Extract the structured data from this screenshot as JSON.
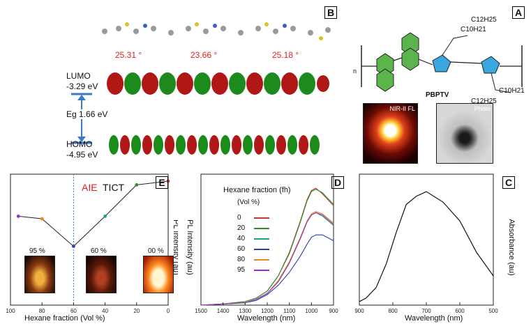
{
  "panels": {
    "A": {
      "label": "A",
      "polymer_name": "PBPTV",
      "subscript_n": "n",
      "side_chain_top_1": "C12H25",
      "side_chain_top_2": "C10H21",
      "side_chain_bottom_1": "C10H21",
      "side_chain_bottom_2": "C12H25",
      "photo_label": "Photo",
      "nir_label": "NIR-II FL"
    },
    "B": {
      "label": "B",
      "angles": [
        "25.31 °",
        "23.66 °",
        "25.18 °"
      ],
      "lumo_label": "LUMO",
      "lumo_value": "-3.29 eV",
      "gap_label": "Eg 1.66 eV",
      "homo_label": "HOMO",
      "homo_value": "-4.95 eV"
    },
    "C": {
      "label": "C",
      "ylabel": "Absorbance (au)",
      "xlabel": "Wavelength (nm)",
      "xticks": [
        "900",
        "800",
        "700",
        "600",
        "500"
      ]
    },
    "D": {
      "label": "D",
      "ylabel": "PL Intensity (au)",
      "xlabel": "Wavelength (nm)",
      "xticks": [
        "900",
        "1000",
        "1100",
        "1200",
        "1300",
        "1400",
        "1500"
      ],
      "legend_title_1": "Hexane fraction (fh)",
      "legend_title_2": "(Vol %)",
      "legend": [
        "0",
        "20",
        "40",
        "60",
        "80",
        "95"
      ]
    },
    "E": {
      "label": "E",
      "ylabel": "PL Intensity (au)",
      "xlabel": "Hexane fraction (Vol %)",
      "xticks": [
        "0",
        "20",
        "40",
        "60",
        "80",
        "100"
      ],
      "region_left": "AIE",
      "region_right": "TICT",
      "vial_labels": [
        "95 %",
        "60 %",
        "00 %"
      ]
    }
  },
  "colors": {
    "series": [
      "#c0392b",
      "#2e8b2e",
      "#1aa37a",
      "#2b3fa8",
      "#e08a1e",
      "#9b30c8"
    ],
    "aie": "#e02020"
  },
  "chart_data": [
    {
      "type": "line",
      "title": "",
      "xlabel": "Wavelength (nm)",
      "ylabel": "Absorbance (au)",
      "xlim": [
        500,
        900
      ],
      "series": [
        {
          "name": "",
          "x": [
            500,
            550,
            600,
            650,
            700,
            730,
            760,
            790,
            820,
            850,
            880,
            900
          ],
          "y": [
            0.25,
            0.45,
            0.72,
            0.88,
            0.97,
            0.93,
            0.86,
            0.62,
            0.35,
            0.15,
            0.06,
            0.03
          ]
        }
      ]
    },
    {
      "type": "line",
      "title": "",
      "xlabel": "Wavelength (nm)",
      "ylabel": "PL Intensity (au)",
      "xlim": [
        900,
        1500
      ],
      "x": [
        900,
        950,
        980,
        1000,
        1020,
        1050,
        1100,
        1150,
        1200,
        1250,
        1300,
        1400,
        1500
      ],
      "series": [
        {
          "name": "0",
          "values": [
            0.85,
            0.95,
            1.0,
            0.98,
            0.9,
            0.72,
            0.45,
            0.25,
            0.12,
            0.06,
            0.03,
            0.01,
            0.0
          ]
        },
        {
          "name": "20",
          "values": [
            0.86,
            0.96,
            0.99,
            0.97,
            0.89,
            0.71,
            0.44,
            0.25,
            0.12,
            0.06,
            0.03,
            0.01,
            0.0
          ]
        },
        {
          "name": "40",
          "values": [
            0.68,
            0.76,
            0.79,
            0.77,
            0.71,
            0.57,
            0.36,
            0.2,
            0.1,
            0.05,
            0.02,
            0.01,
            0.0
          ]
        },
        {
          "name": "60",
          "values": [
            0.55,
            0.6,
            0.6,
            0.58,
            0.52,
            0.42,
            0.28,
            0.17,
            0.09,
            0.04,
            0.02,
            0.01,
            0.0
          ]
        },
        {
          "name": "80",
          "values": [
            0.7,
            0.78,
            0.8,
            0.78,
            0.72,
            0.58,
            0.37,
            0.21,
            0.1,
            0.05,
            0.02,
            0.01,
            0.0
          ]
        },
        {
          "name": "95",
          "values": [
            0.69,
            0.77,
            0.79,
            0.77,
            0.71,
            0.57,
            0.36,
            0.2,
            0.1,
            0.05,
            0.02,
            0.01,
            0.0
          ]
        }
      ]
    },
    {
      "type": "scatter",
      "title": "",
      "xlabel": "Hexane fraction (Vol %)",
      "ylabel": "PL Intensity (au)",
      "xlim": [
        0,
        100
      ],
      "x": [
        0,
        20,
        40,
        60,
        80,
        95
      ],
      "values": [
        1.0,
        0.97,
        0.72,
        0.48,
        0.7,
        0.72
      ]
    }
  ]
}
